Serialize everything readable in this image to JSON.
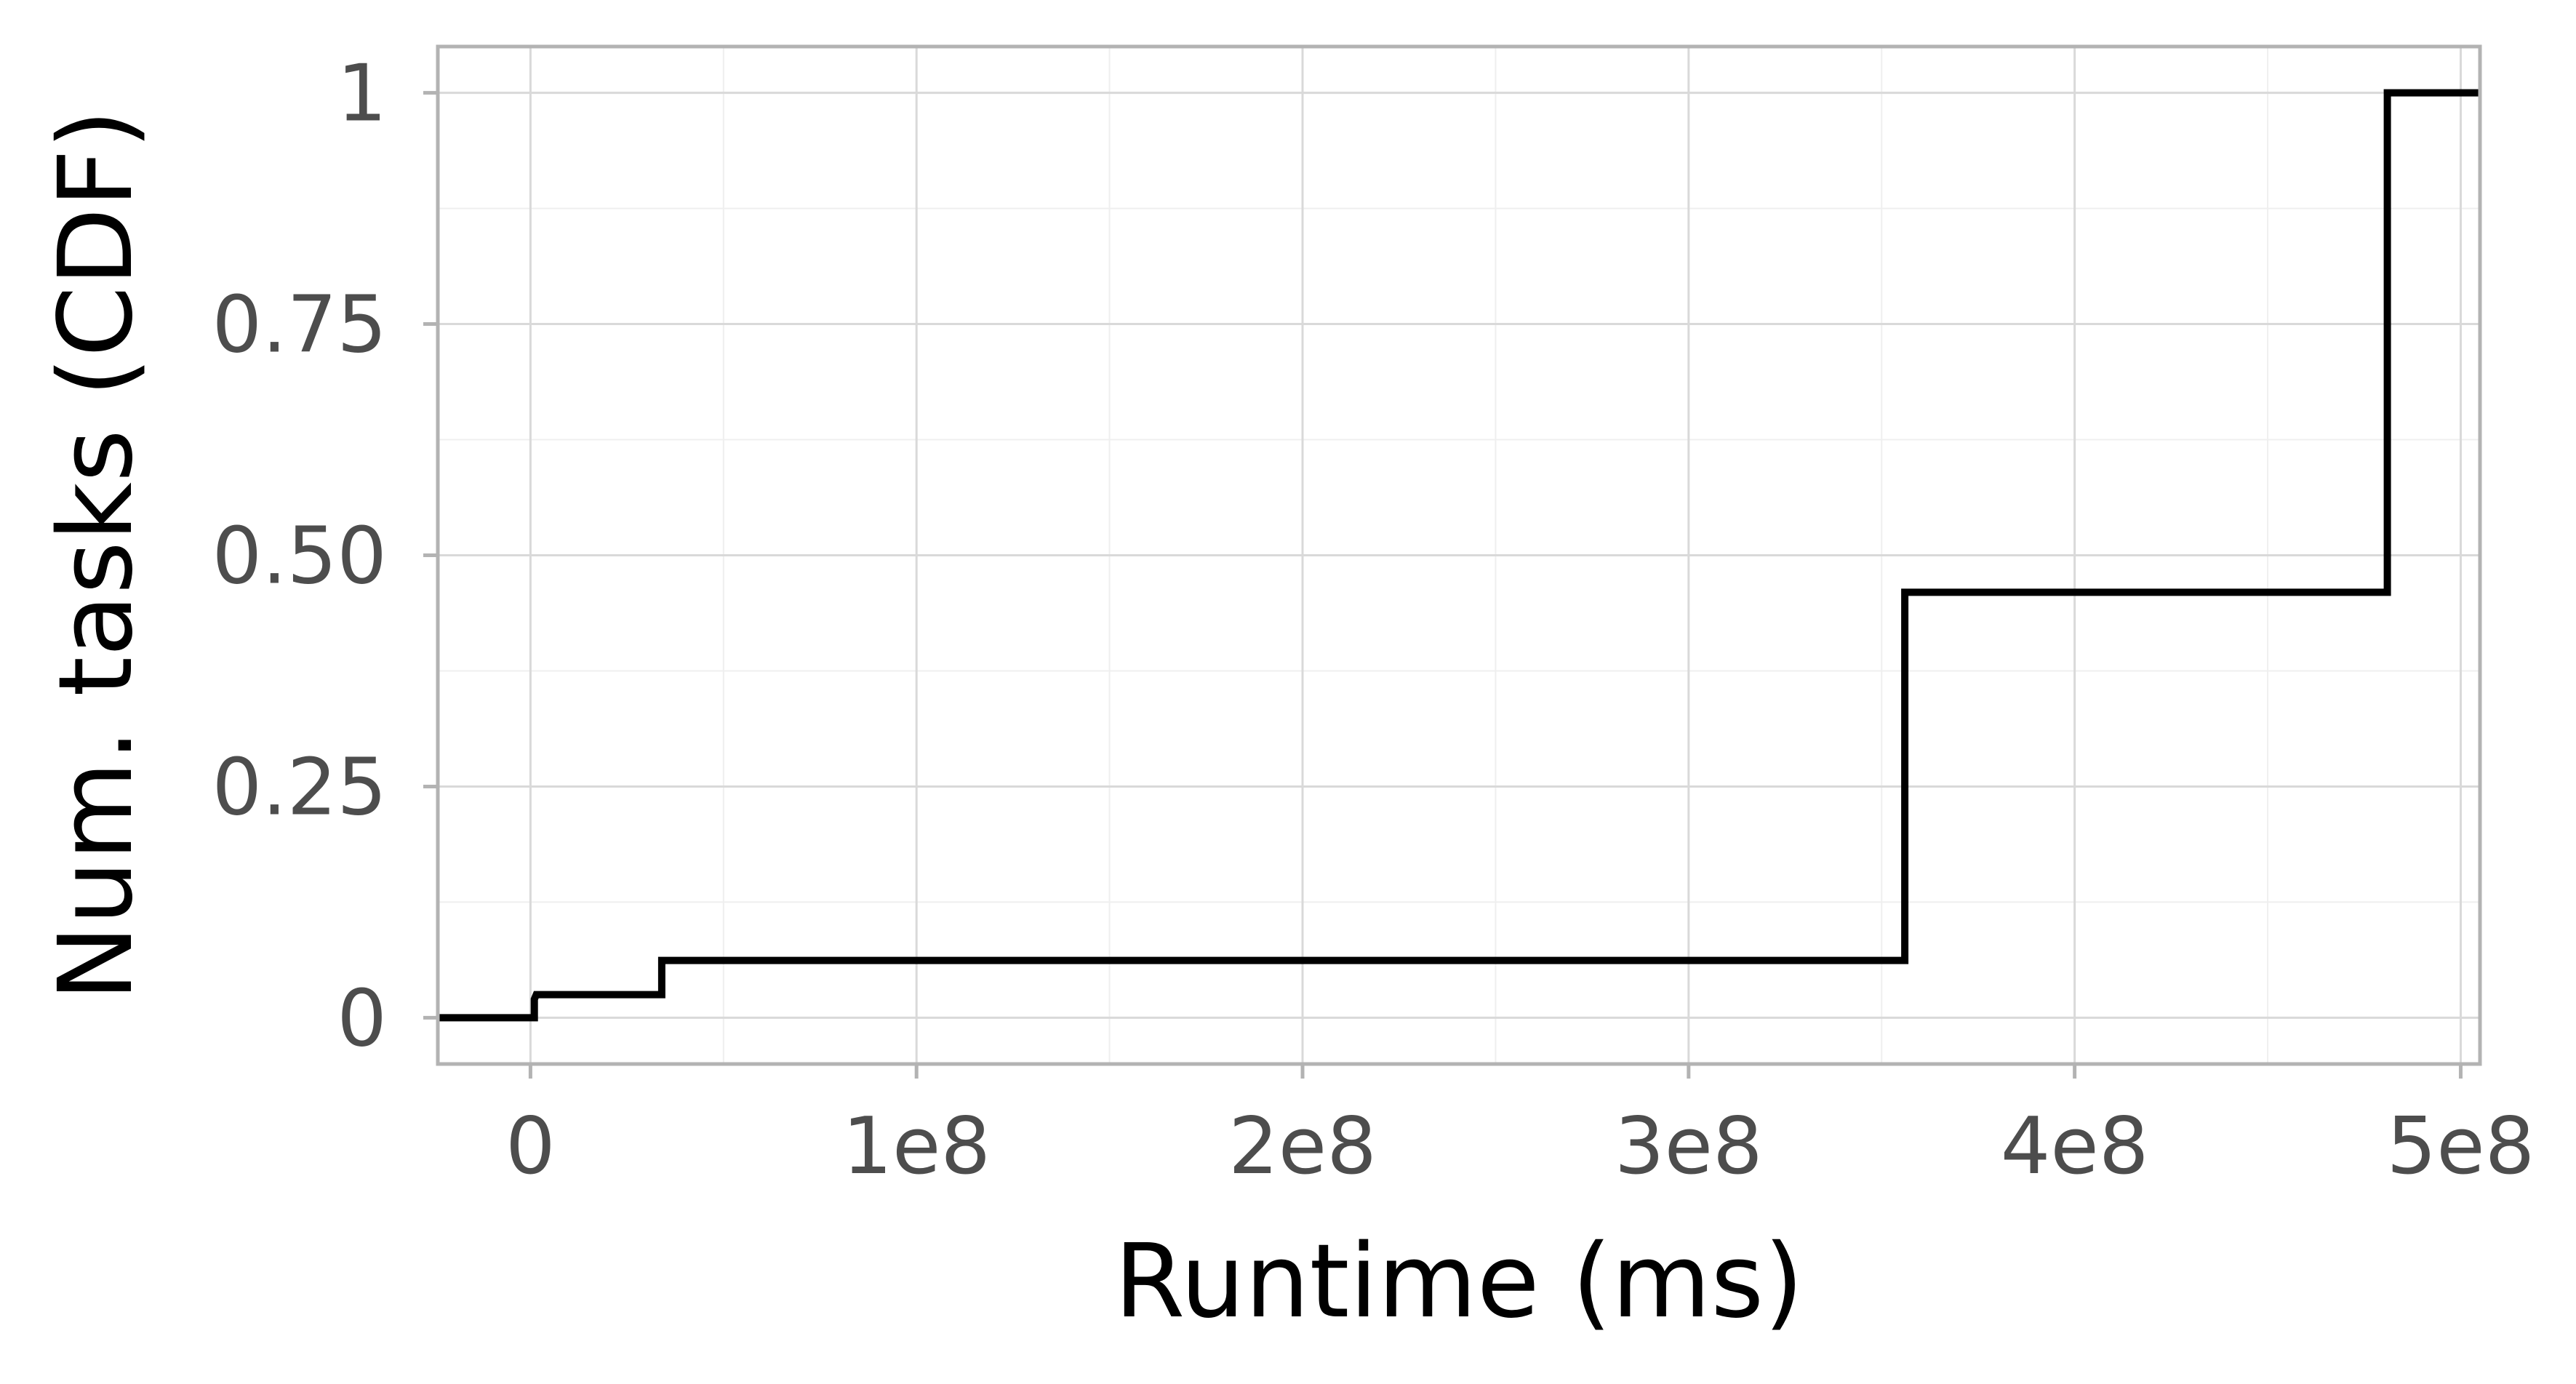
{
  "chart_data": {
    "type": "line",
    "subtype": "step-cdf",
    "title": "",
    "xlabel": "Runtime (ms)",
    "ylabel": "Num. tasks (CDF)",
    "xlim": [
      -24000000,
      505000000
    ],
    "ylim": [
      -0.05,
      1.05
    ],
    "x_ticks": [
      0,
      100000000,
      200000000,
      300000000,
      400000000,
      500000000
    ],
    "x_tick_labels": [
      "0",
      "1e8",
      "2e8",
      "3e8",
      "4e8",
      "5e8"
    ],
    "y_ticks": [
      0,
      0.25,
      0.5,
      0.75,
      1
    ],
    "y_tick_labels": [
      "0",
      "0.25",
      "0.50",
      "0.75",
      "1"
    ],
    "grid": true,
    "legend": "none",
    "series": [
      {
        "color": "#000000",
        "points": [
          {
            "x": -24000000,
            "y": 0
          },
          {
            "x": 1000000,
            "y": 0
          },
          {
            "x": 1000000,
            "y": 0.02
          },
          {
            "x": 1500000,
            "y": 0.025
          },
          {
            "x": 34000000,
            "y": 0.025
          },
          {
            "x": 34000000,
            "y": 0.062
          },
          {
            "x": 356000000,
            "y": 0.062
          },
          {
            "x": 356000000,
            "y": 0.46
          },
          {
            "x": 481000000,
            "y": 0.46
          },
          {
            "x": 481000000,
            "y": 1
          },
          {
            "x": 505000000,
            "y": 1
          }
        ]
      }
    ]
  },
  "colors": {
    "background": "#ffffff",
    "panel_border": "#b3b3b3",
    "major_grid": "#d9d9d9",
    "minor_grid": "#efefef",
    "tick_label": "#4d4d4d",
    "axis_title": "#000000"
  }
}
